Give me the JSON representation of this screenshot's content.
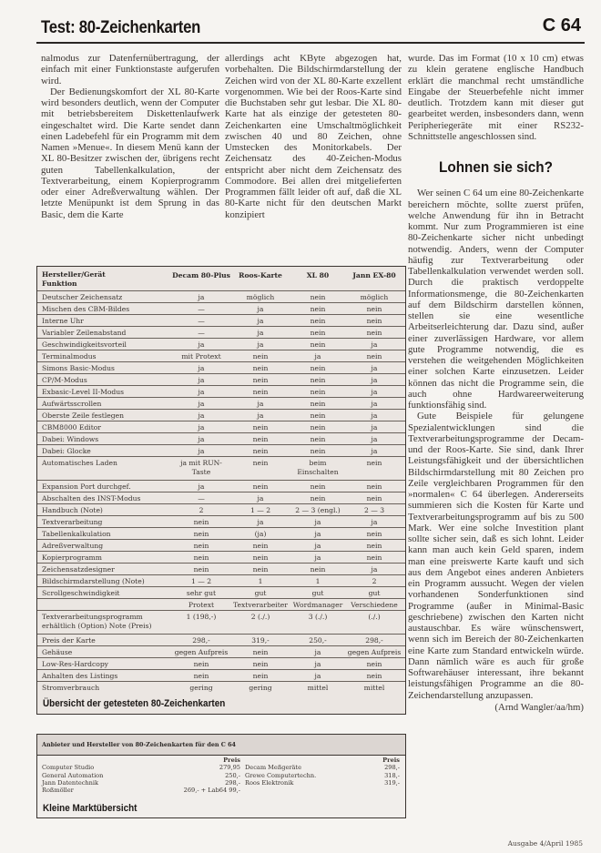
{
  "header": {
    "title": "Test: 80-Zeichenkarten",
    "section": "C 64"
  },
  "columns": {
    "col1": [
      "nalmodus zur Datenfernübertragung, der einfach mit einer Funktionstaste aufgerufen wird.",
      "Der Bedienungskomfort der XL 80-Karte wird besonders deutlich, wenn der Computer mit betriebsbereitem Diskettenlaufwerk eingeschaltet wird. Die Karte sendet dann einen Ladebefehl für ein Programm mit dem Namen »Menue«. In diesem Menü kann der XL 80-Besitzer zwischen der, übrigens recht guten Tabellenkalkulation, der Textverarbeitung, einem Kopierprogramm oder einer Adreßverwaltung wählen. Der letzte Menüpunkt ist dem Sprung in das Basic, dem die Karte"
    ],
    "col2": [
      "allerdings acht KByte abgezogen hat, vorbehalten. Die Bildschirmdarstellung der Zeichen wird von der XL 80-Karte exzellent vorgenommen. Wie bei der Roos-Karte sind die Buchstaben sehr gut lesbar. Die XL 80-Karte hat als einzige der getesteten 80-Zeichenkarten eine Umschaltmöglichkeit zwischen 40 und 80 Zeichen, ohne Umstecken des Monitorkabels. Der Zeichensatz des 40-Zeichen-Modus entspricht aber nicht dem Zeichensatz des Commodore. Bei allen drei mitgelieferten Programmen fällt leider oft auf, daß die XL 80-Karte nicht für den deutschen Markt konzipiert"
    ],
    "col3": {
      "p1": "wurde. Das im Format (10 x 10 cm) etwas zu klein geratene englische Handbuch erklärt die manchmal recht umständliche Eingabe der Steuerbefehle nicht immer deutlich. Trotzdem kann mit dieser gut gearbeitet werden, insbesonders dann, wenn Peripheriegeräte mit einer RS232-Schnittstelle angeschlossen sind.",
      "heading": "Lohnen sie sich?",
      "p2": "Wer seinen C 64 um eine 80-Zeichenkarte bereichern möchte, sollte zuerst prüfen, welche Anwendung für ihn in Betracht kommt. Nur zum Programmieren ist eine 80-Zeichenkarte sicher nicht unbedingt notwendig. Anders, wenn der Computer häufig zur Textverarbeitung oder Tabellenkalkulation verwendet werden soll. Durch die praktisch verdoppelte Informationsmenge, die 80-Zeichenkarten auf dem Bildschirm darstellen können, stellen sie eine wesentliche Arbeitserleichterung dar. Dazu sind, außer einer zuverlässigen Hardware, vor allem gute Programme notwendig, die es verstehen die weitgehenden Möglichkeiten einer solchen Karte einzusetzen. Leider können das nicht die Programme sein, die auch ohne Hardwareerweiterung funktionsfähig sind.",
      "p3": "Gute Beispiele für gelungene Spezialentwicklungen sind die Textverarbeitungsprogramme der Decam- und der Roos-Karte. Sie sind, dank Ihrer Leistungsfähigkeit und der übersichtlichen Bildschirmdarstellung mit 80 Zeichen pro Zeile vergleichbaren Programmen für den »normalen« C 64 überlegen. Andererseits summieren sich die Kosten für Karte und Textverarbeitungsprogramm auf bis zu 500 Mark. Wer eine solche Investition plant sollte sicher sein, daß es sich lohnt. Leider kann man auch kein Geld sparen, indem man eine preiswerte Karte kauft und sich aus dem Angebot eines anderen Anbieters ein Programm aussucht. Wegen der vielen vorhandenen Sonderfunktionen sind Programme (außer in Minimal-Basic geschriebene) zwischen den Karten nicht austauschbar. Es wäre wünschenswert, wenn sich im Bereich der 80-Zeichenkarten eine Karte zum Standard entwickeln würde. Dann nämlich wäre es auch für große Softwarehäuser interessant, ihre bekannt leistungsfähigen Programme an die 80-Zeichendarstellung anzupassen.",
      "signature": "(Arnd Wangler/aa/hm)"
    }
  },
  "comparison_table": {
    "header_label_1": "Hersteller/Gerät",
    "header_label_2": "Funktion",
    "columns": [
      "Decam 80-Plus",
      "Roos-Karte",
      "XL 80",
      "Jann EX-80"
    ],
    "rows": [
      {
        "label": "Deutscher Zeichensatz",
        "values": [
          "ja",
          "möglich",
          "nein",
          "möglich"
        ]
      },
      {
        "label": "Mischen des CBM-Bildes",
        "values": [
          "—",
          "ja",
          "nein",
          "nein"
        ]
      },
      {
        "label": "Interne Uhr",
        "values": [
          "—",
          "ja",
          "nein",
          "nein"
        ]
      },
      {
        "label": "Variabler Zeilenabstand",
        "values": [
          "—",
          "ja",
          "nein",
          "nein"
        ]
      },
      {
        "label": "Geschwindigkeitsvorteil",
        "values": [
          "ja",
          "ja",
          "nein",
          "ja"
        ]
      },
      {
        "label": "Terminalmodus",
        "values": [
          "mit Protext",
          "nein",
          "ja",
          "nein"
        ]
      },
      {
        "label": "Simons Basic-Modus",
        "values": [
          "ja",
          "nein",
          "nein",
          "ja"
        ]
      },
      {
        "label": "CP/M-Modus",
        "values": [
          "ja",
          "nein",
          "nein",
          "ja"
        ]
      },
      {
        "label": "Exbasic-Level II-Modus",
        "values": [
          "ja",
          "nein",
          "nein",
          "ja"
        ]
      },
      {
        "label": "Aufwärtsscrollen",
        "values": [
          "ja",
          "ja",
          "nein",
          "ja"
        ]
      },
      {
        "label": "Oberste Zeile festlegen",
        "values": [
          "ja",
          "ja",
          "nein",
          "ja"
        ]
      },
      {
        "label": "CBM8000 Editor",
        "values": [
          "ja",
          "nein",
          "nein",
          "ja"
        ]
      },
      {
        "label": "Dabei: Windows",
        "values": [
          "ja",
          "nein",
          "nein",
          "ja"
        ]
      },
      {
        "label": "Dabei: Glocke",
        "values": [
          "ja",
          "nein",
          "nein",
          "ja"
        ]
      },
      {
        "label": "Automatisches Laden",
        "values": [
          "ja mit RUN-Taste",
          "nein",
          "beim Einschalten",
          "nein"
        ],
        "double": true
      },
      {
        "label": "Expansion Port durchgef.",
        "values": [
          "ja",
          "nein",
          "nein",
          "nein"
        ]
      },
      {
        "label": "Abschalten des INST-Modus",
        "values": [
          "—",
          "ja",
          "nein",
          "nein"
        ]
      },
      {
        "label": "Handbuch (Note)",
        "values": [
          "2",
          "1 — 2",
          "2 — 3 (engl.)",
          "2 — 3"
        ]
      },
      {
        "label": "Textverarbeitung",
        "values": [
          "nein",
          "ja",
          "ja",
          "ja"
        ]
      },
      {
        "label": "Tabellenkalkulation",
        "values": [
          "nein",
          "(ja)",
          "ja",
          "nein"
        ]
      },
      {
        "label": "Adreßverwaltung",
        "values": [
          "nein",
          "nein",
          "ja",
          "nein"
        ]
      },
      {
        "label": "Kopierprogramm",
        "values": [
          "nein",
          "nein",
          "ja",
          "nein"
        ]
      },
      {
        "label": "Zeichensatzdesigner",
        "values": [
          "nein",
          "nein",
          "nein",
          "ja"
        ]
      },
      {
        "label": "Bildschirmdarstellung (Note)",
        "values": [
          "1 — 2",
          "1",
          "1",
          "2"
        ]
      },
      {
        "label": "Scrollgeschwindigkeit",
        "values": [
          "sehr gut",
          "gut",
          "gut",
          "gut"
        ]
      },
      {
        "label": "",
        "values": [
          "Protext",
          "Textverarbeiter",
          "Wordmanager",
          "Verschiedene"
        ]
      },
      {
        "label": "Textverarbeitungsprogramm erhältlich (Option) Note (Preis)",
        "values": [
          "1 (198,-)",
          "2 (./.)",
          "3 (./.)",
          "(./.)"
        ],
        "double": true
      },
      {
        "label": "Preis der Karte",
        "values": [
          "298,-",
          "319,-",
          "250,-",
          "298,-"
        ]
      },
      {
        "label": "Gehäuse",
        "values": [
          "gegen Aufpreis",
          "nein",
          "ja",
          "gegen Aufpreis"
        ]
      },
      {
        "label": "Low-Res-Hardcopy",
        "values": [
          "nein",
          "nein",
          "ja",
          "nein"
        ]
      },
      {
        "label": "Anhalten des Listings",
        "values": [
          "nein",
          "nein",
          "ja",
          "nein"
        ]
      },
      {
        "label": "Stromverbrauch",
        "values": [
          "gering",
          "gering",
          "mittel",
          "mittel"
        ]
      }
    ],
    "caption": "Übersicht der getesteten 80-Zeichenkarten"
  },
  "market_box": {
    "title": "Anbieter und Hersteller von 80-Zeichenkarten für den C 64",
    "price_header": "Preis",
    "left": [
      {
        "name": "Computer Studio",
        "price": "279,95"
      },
      {
        "name": "General Automation",
        "price": "250,-"
      },
      {
        "name": "Jann Datentechnik",
        "price": "298,-"
      },
      {
        "name": "Roßmöller",
        "price": "269,- + Lab64 99,-"
      }
    ],
    "right": [
      {
        "name": "Decam Meßgeräte",
        "price": "298,-"
      },
      {
        "name": "Grewe Computertechn.",
        "price": "318,-"
      },
      {
        "name": "Roos Elektronik",
        "price": "319,-"
      }
    ],
    "caption": "Kleine Marktübersicht"
  },
  "footer": {
    "issue": "Ausgabe 4/April 1985"
  }
}
